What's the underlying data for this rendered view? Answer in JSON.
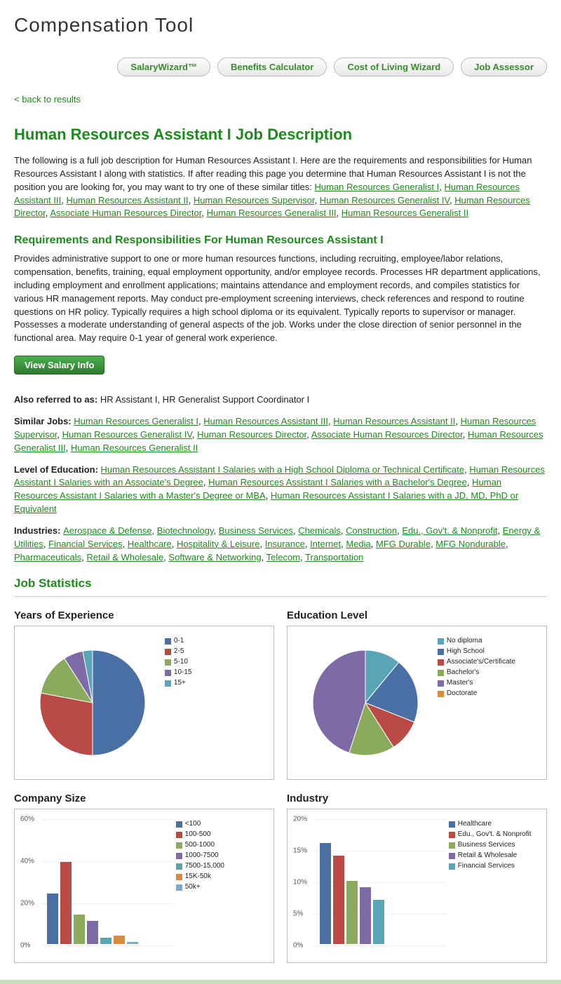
{
  "page_title": "Compensation Tool",
  "nav": [
    "SalaryWizard™",
    "Benefits Calculator",
    "Cost of Living Wizard",
    "Job Assessor"
  ],
  "back_link": "< back to results",
  "job_title_heading": "Human Resources Assistant I Job Description",
  "intro_prefix": "The following is a full job description for Human Resources Assistant I. Here are the requirements and responsibilities for Human Resources Assistant I along with statistics. If after reading this page you determine that Human Resources Assistant I is not the position you are looking for, you may want to try one of these similar titles: ",
  "intro_links": [
    "Human Resources Generalist I",
    "Human Resources Assistant III",
    "Human Resources Assistant II",
    "Human Resources Supervisor",
    "Human Resources Generalist IV",
    "Human Resources Director",
    "Associate Human Resources Director",
    "Human Resources Generalist III",
    "Human Resources Generalist II"
  ],
  "req_heading": "Requirements and Responsibilities For Human Resources Assistant I",
  "req_body": "Provides administrative support to one or more human resources functions, including recruiting, employee/labor relations, compensation, benefits, training, equal employment opportunity, and/or employee records. Processes HR department applications, including employment and enrollment applications; maintains attendance and employment records, and compiles statistics for various HR management reports. May conduct pre-employment screening interviews, check references and respond to routine questions on HR policy. Typically requires a high school diploma or its equivalent. Typically reports to supervisor or manager. Possesses a moderate understanding of general aspects of the job. Works under the close direction of senior personnel in the functional area. May require 0-1 year of general work experience.",
  "view_salary_btn": "View Salary Info",
  "aka_label": "Also referred to as:",
  "aka_value": " HR Assistant I, HR Generalist Support Coordinator I",
  "similar_label": "Similar Jobs:  ",
  "similar_links": [
    "Human Resources Generalist I",
    "Human Resources Assistant III",
    "Human Resources Assistant II",
    "Human Resources Supervisor",
    "Human Resources Generalist IV",
    "Human Resources Director",
    "Associate Human Resources Director",
    "Human Resources Generalist III",
    "Human Resources Generalist II"
  ],
  "edu_label": "Level of Education:  ",
  "edu_links": [
    "Human Resources Assistant I Salaries with a High School Diploma or Technical Certificate",
    "Human Resources Assistant I Salaries with an Associate's Degree",
    "Human Resources Assistant I Salaries with a Bachelor's Degree",
    "Human Resources Assistant I Salaries with a Master's Degree or MBA",
    "Human Resources Assistant I Salaries with a JD, MD, PhD or Equivalent"
  ],
  "ind_label": "Industries:  ",
  "ind_links": [
    "Aerospace & Defense",
    "Biotechnology",
    "Business Services",
    "Chemicals",
    "Construction",
    "Edu., Gov't. & Nonprofit",
    "Energy & Utilities",
    "Financial Services",
    "Healthcare",
    "Hospitality & Leisure",
    "Insurance",
    "Internet",
    "Media",
    "MFG Durable",
    "MFG Nondurable",
    "Pharmaceuticals",
    "Retail & Wholesale",
    "Software & Networking",
    "Telecom",
    "Transportation"
  ],
  "stats_heading": "Job Statistics",
  "colors": {
    "green": "#1e8a1e",
    "border": "#bbbbbb"
  },
  "charts": {
    "experience": {
      "title": "Years of Experience",
      "type": "pie",
      "labels": [
        "0-1",
        "2-5",
        "5-10",
        "10-15",
        "15+"
      ],
      "values": [
        50,
        28,
        13,
        6,
        3
      ],
      "colors": [
        "#4a6fa5",
        "#b94a45",
        "#8aab5b",
        "#7e6aa5",
        "#5aa5b5"
      ]
    },
    "education": {
      "title": "Education Level",
      "type": "pie",
      "labels": [
        "No diploma",
        "High School",
        "Associate's/Certificate",
        "Bachelor's",
        "Master's",
        "Doctorate"
      ],
      "values": [
        11,
        20,
        10,
        14,
        45,
        0
      ],
      "colors": [
        "#5aa5b5",
        "#4a6fa5",
        "#b94a45",
        "#8aab5b",
        "#7e6aa5",
        "#d88b3a"
      ]
    },
    "company_size": {
      "title": "Company Size",
      "type": "bar",
      "labels": [
        "<100",
        "100-500",
        "500-1000",
        "1000-7500",
        "7500-15,000",
        "15K-50k",
        "50k+"
      ],
      "values": [
        24,
        39,
        14,
        11,
        3,
        4,
        1
      ],
      "colors": [
        "#4a6fa5",
        "#b94a45",
        "#8aab5b",
        "#7e6aa5",
        "#5aa5b5",
        "#d88b3a",
        "#7aa8d4"
      ],
      "ymax": 60,
      "ystep": 20,
      "ysuffix": "%"
    },
    "industry": {
      "title": "Industry",
      "type": "bar",
      "labels": [
        "Healthcare",
        "Edu., Gov't. & Nonprofit",
        "Business Services",
        "Retail & Wholesale",
        "Financial Services"
      ],
      "values": [
        16,
        14,
        10,
        9,
        7
      ],
      "colors": [
        "#4a6fa5",
        "#b94a45",
        "#8aab5b",
        "#7e6aa5",
        "#5aa5b5"
      ],
      "ymax": 20,
      "ystep": 5,
      "ysuffix": "%"
    }
  }
}
